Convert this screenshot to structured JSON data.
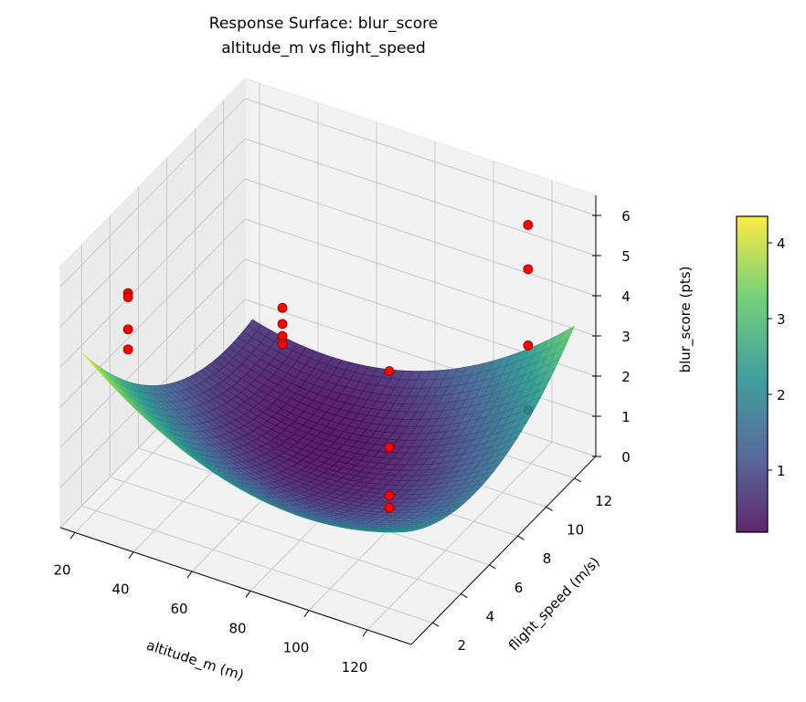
{
  "chart_data": {
    "type": "surface3d",
    "title": "Response Surface: blur_score",
    "subtitle": "altitude_m vs flight_speed",
    "xlabel": "altitude_m (m)",
    "ylabel": "flight_speed (m/s)",
    "zlabel": "blur_score (pts)",
    "xlim": [
      15,
      135
    ],
    "ylim": [
      0.5,
      13.5
    ],
    "zlim": [
      0,
      6.5
    ],
    "xticks": [
      20,
      40,
      60,
      80,
      100,
      120
    ],
    "yticks": [
      2,
      4,
      6,
      8,
      10,
      12
    ],
    "zticks": [
      0,
      1,
      2,
      3,
      4,
      5,
      6
    ],
    "grid": true,
    "colormap": "viridis",
    "surface": {
      "x_range": [
        20,
        130
      ],
      "y_range": [
        1,
        13
      ],
      "corner_values": {
        "x20_y1": 4.3,
        "x130_y1": 2.5,
        "x130_y13": 3.3,
        "x20_y13": 0.8
      },
      "min_value": 0.17
    },
    "points": [
      {
        "x": 27,
        "y": 2.8,
        "z": 5.3
      },
      {
        "x": 27,
        "y": 2.8,
        "z": 5.2
      },
      {
        "x": 27,
        "y": 2.8,
        "z": 4.4
      },
      {
        "x": 27,
        "y": 2.8,
        "z": 3.9
      },
      {
        "x": 39,
        "y": 11.2,
        "z": 2.2
      },
      {
        "x": 39,
        "y": 11.2,
        "z": 1.8
      },
      {
        "x": 39,
        "y": 11.2,
        "z": 1.5
      },
      {
        "x": 39,
        "y": 11.2,
        "z": 1.3
      },
      {
        "x": 111,
        "y": 3.9,
        "z": 5.0
      },
      {
        "x": 111,
        "y": 3.9,
        "z": 3.1
      },
      {
        "x": 111,
        "y": 3.9,
        "z": 1.9
      },
      {
        "x": 111,
        "y": 3.9,
        "z": 1.6
      },
      {
        "x": 123,
        "y": 11.2,
        "z": 6.3
      },
      {
        "x": 123,
        "y": 11.2,
        "z": 5.2
      },
      {
        "x": 123,
        "y": 11.2,
        "z": 3.3
      },
      {
        "x": 123,
        "y": 11.2,
        "z": 1.7
      }
    ],
    "point_color": "#ff0000",
    "colorbar": {
      "range": [
        0.18,
        4.35
      ],
      "ticks": [
        1,
        2,
        3,
        4
      ]
    }
  }
}
